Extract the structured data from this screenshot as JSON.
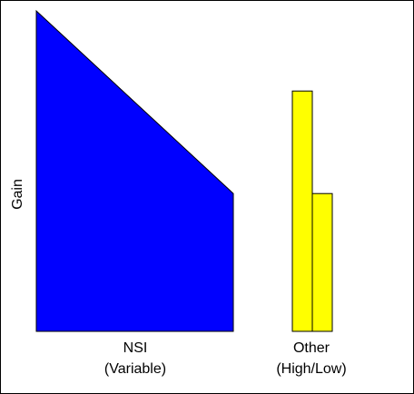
{
  "chart_data": {
    "type": "bar",
    "ylabel": "Gain",
    "ylim": [
      0,
      1
    ],
    "categories": [
      {
        "line1": "NSI",
        "line2": "(Variable)"
      },
      {
        "line1": "Other",
        "line2": "(High/Low)"
      }
    ],
    "nsi_profile": {
      "description_values": "gain decreases linearly from high to low across the band",
      "start_gain": 1.0,
      "end_gain": 0.43
    },
    "other_bars": [
      {
        "name": "High",
        "value": 0.75
      },
      {
        "name": "Low",
        "value": 0.43
      }
    ],
    "colors": {
      "nsi": "#0000ff",
      "other": "#ffff00",
      "outline": "#000000"
    }
  }
}
